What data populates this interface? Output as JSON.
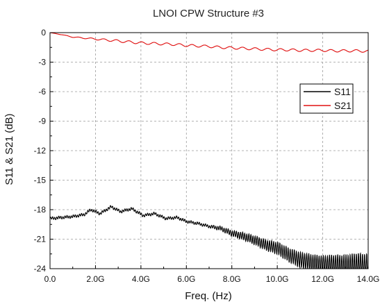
{
  "chart_data": {
    "type": "line",
    "title": "LNOI CPW Structure #3",
    "xlabel": "Freq. (Hz)",
    "ylabel": "S11 & S21 (dB)",
    "xlim": [
      0,
      14
    ],
    "ylim": [
      -24,
      0
    ],
    "x_unit_suffix": "G",
    "x_ticks": [
      0,
      2,
      4,
      6,
      8,
      10,
      12,
      14
    ],
    "x_tick_labels": [
      "0.0",
      "2.0G",
      "4.0G",
      "6.0G",
      "8.0G",
      "10.0G",
      "12.0G",
      "14.0G"
    ],
    "y_ticks": [
      0,
      -3,
      -6,
      -9,
      -12,
      -15,
      -18,
      -21,
      -24
    ],
    "y_tick_labels": [
      "0",
      "-3",
      "-6",
      "-9",
      "-12",
      "-15",
      "-18",
      "-21",
      "-24"
    ],
    "grid": true,
    "legend_position": "right",
    "series": [
      {
        "name": "S11",
        "color": "#000000",
        "x": [
          0,
          0.5,
          1,
          1.5,
          1.8,
          2.2,
          2.7,
          3.1,
          3.6,
          4.1,
          4.6,
          5.1,
          5.6,
          6.0,
          6.5,
          7.0,
          7.5,
          8.0,
          8.5,
          9.0,
          9.5,
          10.0,
          10.5,
          11.0,
          11.5,
          12.0,
          12.5,
          13.0,
          13.5,
          14.0
        ],
        "values": [
          -18.9,
          -18.8,
          -18.7,
          -18.5,
          -18.0,
          -18.4,
          -17.7,
          -18.2,
          -17.9,
          -18.6,
          -18.4,
          -18.9,
          -18.8,
          -19.2,
          -19.4,
          -19.7,
          -19.9,
          -20.4,
          -20.7,
          -21.1,
          -21.6,
          -21.9,
          -22.6,
          -23.1,
          -23.4,
          -23.6,
          -23.6,
          -23.7,
          -23.6,
          -23.8
        ]
      },
      {
        "name": "S21",
        "color": "#e01010",
        "x": [
          0,
          0.5,
          1,
          1.5,
          2,
          2.5,
          3,
          3.5,
          4,
          4.5,
          5,
          5.5,
          6,
          6.5,
          7,
          7.5,
          8,
          8.5,
          9,
          9.5,
          10,
          10.5,
          11,
          11.5,
          12,
          12.5,
          13,
          13.5,
          14
        ],
        "values": [
          0,
          -0.2,
          -0.45,
          -0.55,
          -0.65,
          -0.75,
          -0.85,
          -0.95,
          -1.05,
          -1.1,
          -1.15,
          -1.2,
          -1.3,
          -1.35,
          -1.4,
          -1.5,
          -1.55,
          -1.6,
          -1.65,
          -1.7,
          -1.75,
          -1.75,
          -1.8,
          -1.8,
          -1.8,
          -1.85,
          -1.85,
          -1.85,
          -1.9
        ]
      }
    ]
  }
}
